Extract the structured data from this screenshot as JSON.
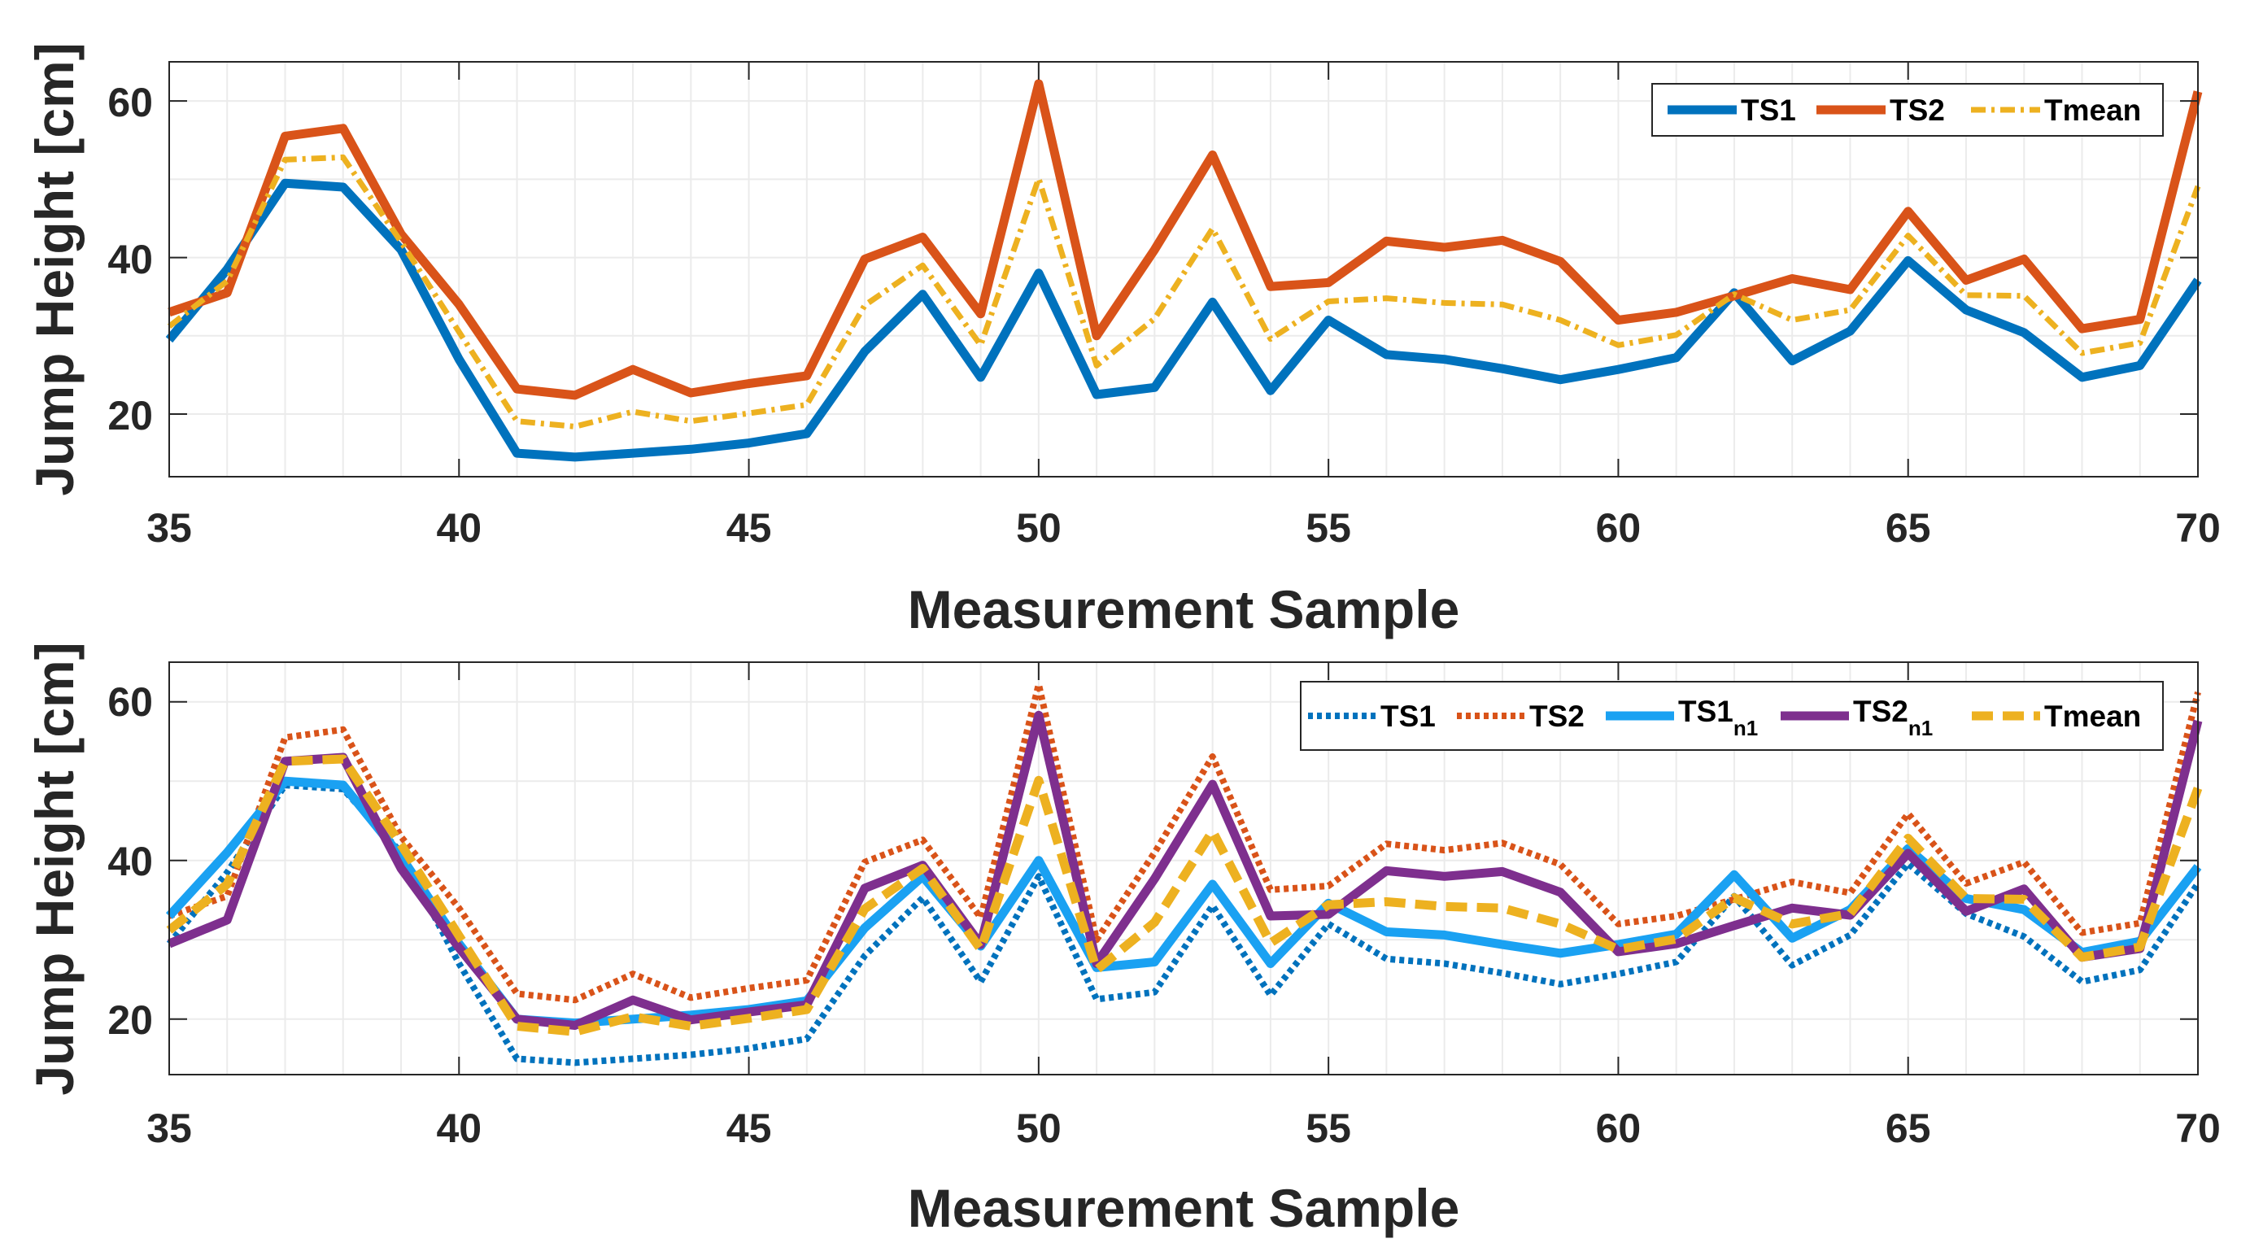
{
  "chart_data": [
    {
      "type": "line",
      "x": [
        35,
        36,
        37,
        38,
        39,
        40,
        41,
        42,
        43,
        44,
        45,
        46,
        47,
        48,
        49,
        50,
        51,
        52,
        53,
        54,
        55,
        56,
        57,
        58,
        59,
        60,
        61,
        62,
        63,
        64,
        65,
        66,
        67,
        68,
        69,
        70
      ],
      "xlabel": "Measurement Sample",
      "ylabel": "Jump Height [cm]",
      "xlim": [
        35,
        70
      ],
      "ylim": [
        12,
        65
      ],
      "xticks": [
        "35",
        "40",
        "45",
        "50",
        "55",
        "60",
        "65",
        "70"
      ],
      "yticks": [
        "20",
        "40",
        "60"
      ],
      "grid": true,
      "legend_position": "top-right",
      "series": [
        {
          "name": "TS1",
          "style": "solid",
          "color": "#0072BD",
          "values": [
            29.5,
            38.5,
            49.5,
            49,
            41,
            27,
            15,
            14.5,
            15,
            15.5,
            16.3,
            17.5,
            28,
            35.3,
            24.7,
            38,
            22.5,
            23.4,
            34.3,
            23,
            32,
            27.6,
            27,
            25.8,
            24.4,
            25.7,
            27.2,
            35.5,
            26.8,
            30.6,
            39.6,
            33.3,
            30.4,
            24.7,
            26.2,
            37.1
          ]
        },
        {
          "name": "TS2",
          "style": "solid",
          "color": "#D95319",
          "values": [
            33,
            35.5,
            55.5,
            56.5,
            43,
            34,
            23.2,
            22.4,
            25.7,
            22.7,
            23.9,
            24.9,
            39.8,
            42.6,
            32.8,
            62.2,
            30,
            41,
            53.1,
            36.3,
            36.8,
            42.1,
            41.3,
            42.2,
            39.5,
            32,
            33,
            35.1,
            37.3,
            35.9,
            45.9,
            37.1,
            39.8,
            30.9,
            32.1,
            61.2
          ]
        },
        {
          "name": "Tmean",
          "style": "dashdot",
          "color": "#EDB120",
          "values": [
            31.2,
            37,
            52.5,
            52.8,
            42,
            30.5,
            19.1,
            18.4,
            20.3,
            19.1,
            20.1,
            21.2,
            33.9,
            39,
            28.8,
            50.1,
            26.2,
            32.2,
            43.7,
            29.6,
            34.4,
            34.8,
            34.2,
            34,
            32,
            28.8,
            30.1,
            35.3,
            32,
            33.3,
            42.8,
            35.2,
            35.1,
            27.8,
            29.1,
            49.1
          ]
        }
      ]
    },
    {
      "type": "line",
      "x": [
        35,
        36,
        37,
        38,
        39,
        40,
        41,
        42,
        43,
        44,
        45,
        46,
        47,
        48,
        49,
        50,
        51,
        52,
        53,
        54,
        55,
        56,
        57,
        58,
        59,
        60,
        61,
        62,
        63,
        64,
        65,
        66,
        67,
        68,
        69,
        70
      ],
      "xlabel": "Measurement Sample",
      "ylabel": "Jump Height [cm]",
      "xlim": [
        35,
        70
      ],
      "ylim": [
        13,
        65
      ],
      "xticks": [
        "35",
        "40",
        "45",
        "50",
        "55",
        "60",
        "65",
        "70"
      ],
      "yticks": [
        "20",
        "40",
        "60"
      ],
      "grid": true,
      "legend_position": "top-right",
      "series": [
        {
          "name": "TS1",
          "style": "dotted",
          "color": "#0072BD",
          "values": [
            29.5,
            38.5,
            49.5,
            49,
            41,
            27,
            15,
            14.5,
            15,
            15.5,
            16.3,
            17.5,
            28,
            35.3,
            24.7,
            38,
            22.5,
            23.4,
            34.3,
            23,
            32,
            27.6,
            27,
            25.8,
            24.4,
            25.7,
            27.2,
            35.5,
            26.8,
            30.6,
            39.6,
            33.3,
            30.4,
            24.7,
            26.2,
            37.1
          ]
        },
        {
          "name": "TS2",
          "style": "dotted",
          "color": "#D95319",
          "values": [
            33,
            35.5,
            55.5,
            56.5,
            43,
            34,
            23.2,
            22.4,
            25.7,
            22.7,
            23.9,
            24.9,
            39.8,
            42.6,
            32.8,
            62.2,
            30,
            41,
            53.1,
            36.3,
            36.8,
            42.1,
            41.3,
            42.2,
            39.5,
            32,
            33,
            35.1,
            37.3,
            35.9,
            45.9,
            37.1,
            39.8,
            30.9,
            32.1,
            61.2
          ]
        },
        {
          "name": "TS1",
          "sub": "n1",
          "style": "solid",
          "color": "#1AA1F2",
          "values": [
            33,
            41,
            50,
            49.5,
            40.5,
            29.5,
            20,
            19.5,
            20,
            20.5,
            21.2,
            22.3,
            31.5,
            38,
            29.2,
            40,
            26.5,
            27.2,
            37,
            27,
            34.6,
            31,
            30.6,
            29.4,
            28.3,
            29.4,
            30.7,
            38.2,
            30.2,
            33.8,
            41.5,
            35.2,
            33.8,
            28.4,
            29.8,
            39.2
          ]
        },
        {
          "name": "TS2",
          "sub": "n1",
          "style": "solid",
          "color": "#7E2F8E",
          "values": [
            29.5,
            32.5,
            52.5,
            53,
            39,
            29,
            20,
            19.2,
            22.4,
            19.9,
            20.9,
            21.8,
            36.5,
            39.4,
            29.4,
            58.3,
            27,
            37.7,
            49.6,
            33,
            33.2,
            38.7,
            38,
            38.6,
            36,
            28.5,
            29.5,
            31.8,
            34,
            33.1,
            40.9,
            33.6,
            36.4,
            27.8,
            28.9,
            57.6
          ]
        },
        {
          "name": "Tmean",
          "style": "dashed",
          "color": "#EDB120",
          "values": [
            31.2,
            37,
            52.5,
            52.8,
            42,
            30.5,
            19.1,
            18.4,
            20.3,
            19.1,
            20.1,
            21.2,
            33.9,
            39,
            28.8,
            50.1,
            26.2,
            32.2,
            43.7,
            29.6,
            34.4,
            34.8,
            34.2,
            34,
            32,
            28.8,
            30.1,
            35.3,
            32,
            33.3,
            42.8,
            35.2,
            35.1,
            27.8,
            29.1,
            49.1
          ]
        }
      ]
    }
  ]
}
